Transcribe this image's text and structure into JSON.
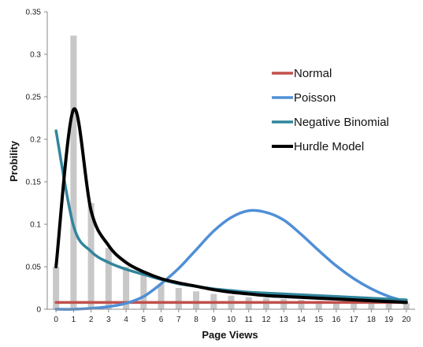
{
  "chart_data": {
    "type": "line",
    "title": "",
    "xlabel": "Page Views",
    "ylabel": "Probility",
    "x": [
      0,
      1,
      2,
      3,
      4,
      5,
      6,
      7,
      8,
      9,
      10,
      11,
      12,
      13,
      14,
      15,
      16,
      17,
      18,
      19,
      20
    ],
    "xlim": [
      0,
      20
    ],
    "ylim": [
      0,
      0.35
    ],
    "yticks": [
      0,
      0.05,
      0.1,
      0.15,
      0.2,
      0.25,
      0.3,
      0.35
    ],
    "ytick_labels": [
      "0",
      "0.05",
      "0.1",
      "0.15",
      "0.2",
      "0.25",
      "0.3",
      "0.35"
    ],
    "grid": false,
    "legend_position": "right",
    "bars": {
      "color": "#c8c8c8",
      "values": [
        0.05,
        0.322,
        0.125,
        0.072,
        0.05,
        0.04,
        0.03,
        0.025,
        0.021,
        0.018,
        0.016,
        0.014,
        0.013,
        0.012,
        0.011,
        0.01,
        0.009,
        0.009,
        0.008,
        0.007,
        0.007
      ]
    },
    "series": [
      {
        "name": "Normal",
        "color": "#c0504d",
        "values": [
          0.008,
          0.008,
          0.008,
          0.008,
          0.008,
          0.008,
          0.008,
          0.008,
          0.008,
          0.008,
          0.008,
          0.008,
          0.008,
          0.008,
          0.008,
          0.008,
          0.008,
          0.008,
          0.008,
          0.008,
          0.008
        ]
      },
      {
        "name": "Poisson",
        "color": "#4f8fd6",
        "values": [
          0.0,
          0.0,
          0.001,
          0.003,
          0.007,
          0.015,
          0.03,
          0.048,
          0.07,
          0.092,
          0.108,
          0.116,
          0.114,
          0.105,
          0.088,
          0.069,
          0.051,
          0.036,
          0.024,
          0.015,
          0.009
        ]
      },
      {
        "name": "Negative Binomial",
        "color": "#31859c",
        "values": [
          0.21,
          0.098,
          0.068,
          0.055,
          0.047,
          0.041,
          0.035,
          0.03,
          0.027,
          0.024,
          0.022,
          0.02,
          0.019,
          0.018,
          0.017,
          0.016,
          0.015,
          0.014,
          0.013,
          0.012,
          0.011
        ]
      },
      {
        "name": "Hurdle Model",
        "color": "#000000",
        "values": [
          0.05,
          0.235,
          0.116,
          0.075,
          0.055,
          0.044,
          0.036,
          0.031,
          0.027,
          0.023,
          0.02,
          0.018,
          0.016,
          0.015,
          0.014,
          0.013,
          0.012,
          0.011,
          0.01,
          0.009,
          0.008
        ]
      }
    ]
  }
}
